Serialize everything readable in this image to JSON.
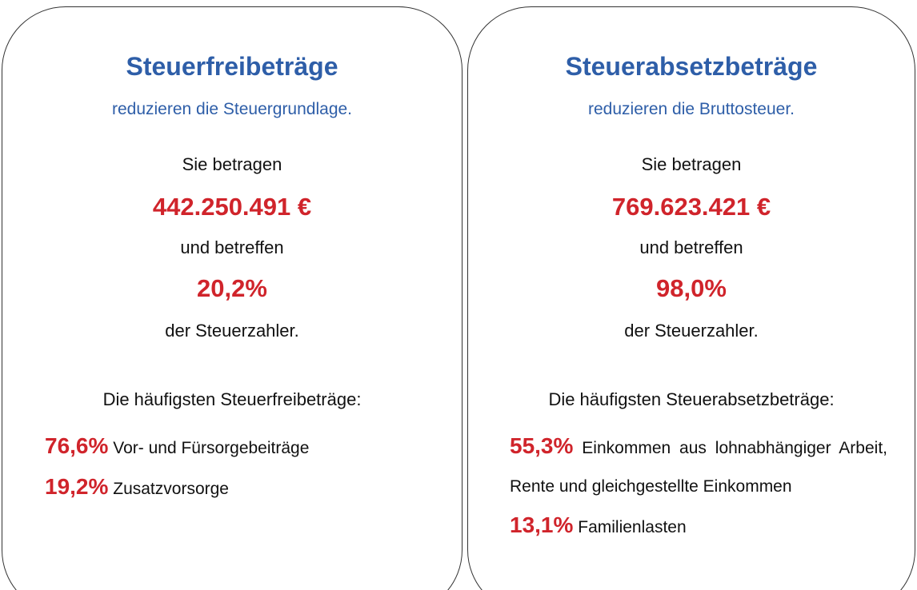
{
  "cards": [
    {
      "title": "Steuerfreibeträge",
      "subtitle": "reduzieren die Steuergrundlage.",
      "line1": "Sie betragen",
      "amount": "442.250.491 €",
      "line2": "und betreffen",
      "share": "20,2%",
      "line3": "der Steuerzahler.",
      "list_title": "Die häufigsten Steuerfreibeträge:",
      "items": [
        {
          "percent": "76,6%",
          "text": "Vor- und Fürsorgebeiträge"
        },
        {
          "percent": "19,2%",
          "text": "Zusatzvorsorge"
        }
      ]
    },
    {
      "title": "Steuerabsetzbeträge",
      "subtitle": "reduzieren die Bruttosteuer.",
      "line1": "Sie betragen",
      "amount": "769.623.421 €",
      "line2": "und betreffen",
      "share": "98,0%",
      "line3": "der Steuerzahler.",
      "list_title": "Die häufigsten Steuerabsetzbeträge:",
      "items": [
        {
          "percent": "55,3%",
          "text": "Einkommen aus lohnabhängiger Arbeit, Rente und gleichgestellte Einkommen"
        },
        {
          "percent": "13,1%",
          "text": "Familienlasten"
        }
      ]
    }
  ]
}
